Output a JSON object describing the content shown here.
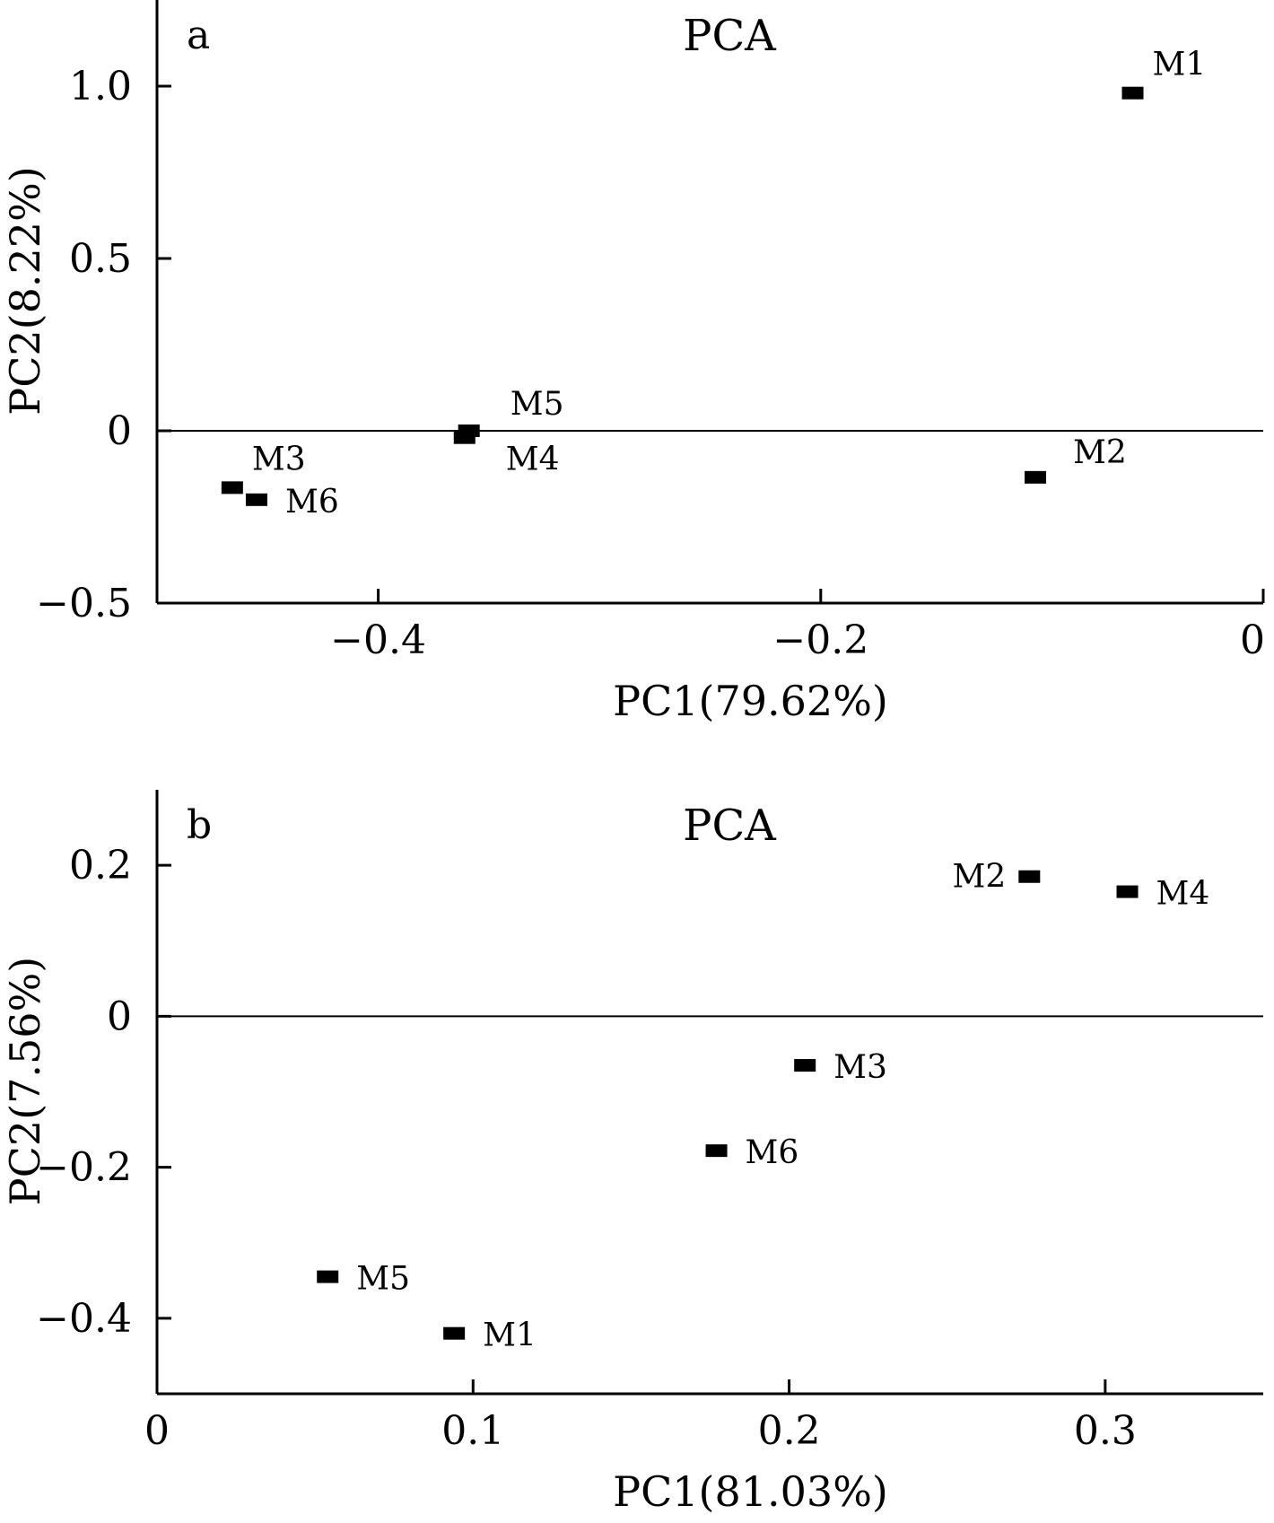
{
  "chart_data": [
    {
      "type": "scatter",
      "panel": "a",
      "title": "PCA",
      "xlabel": "PC1(79.62%)",
      "ylabel": "PC2(8.22%)",
      "xlim": [
        -0.5,
        0.0
      ],
      "ylim": [
        -0.5,
        1.25
      ],
      "xticks": [
        -0.4,
        -0.2,
        0
      ],
      "xtick_labels": [
        "−0.4",
        "−0.2",
        "0"
      ],
      "yticks": [
        -0.5,
        0,
        0.5,
        1.0
      ],
      "ytick_labels": [
        "−0.5",
        "0",
        "0.5",
        "1.0"
      ],
      "zero_line": "y=0",
      "grid": false,
      "points": [
        {
          "label": "M1",
          "x": -0.059,
          "y": 0.98,
          "label_side": "upper-right"
        },
        {
          "label": "M2",
          "x": -0.103,
          "y": -0.135,
          "label_side": "upper-right"
        },
        {
          "label": "M3",
          "x": -0.466,
          "y": -0.165,
          "label_side": "upper-right"
        },
        {
          "label": "M4",
          "x": -0.361,
          "y": -0.02,
          "label_side": "lower-right"
        },
        {
          "label": "M5",
          "x": -0.359,
          "y": 0.0,
          "label_side": "upper-right"
        },
        {
          "label": "M6",
          "x": -0.455,
          "y": -0.2,
          "label_side": "right"
        }
      ]
    },
    {
      "type": "scatter",
      "panel": "b",
      "title": "PCA",
      "xlabel": "PC1(81.03%)",
      "ylabel": "PC2(7.56%)",
      "xlim": [
        0.0,
        0.35
      ],
      "ylim": [
        -0.5,
        0.3
      ],
      "xticks": [
        0,
        0.1,
        0.2,
        0.3
      ],
      "xtick_labels": [
        "0",
        "0.1",
        "0.2",
        "0.3"
      ],
      "yticks": [
        -0.4,
        -0.2,
        0,
        0.2
      ],
      "ytick_labels": [
        "−0.4",
        "−0.2",
        "0",
        "0.2"
      ],
      "zero_line": "y=0",
      "grid": false,
      "points": [
        {
          "label": "M1",
          "x": 0.094,
          "y": -0.42,
          "label_side": "right"
        },
        {
          "label": "M2",
          "x": 0.276,
          "y": 0.185,
          "label_side": "left"
        },
        {
          "label": "M3",
          "x": 0.205,
          "y": -0.065,
          "label_side": "right"
        },
        {
          "label": "M4",
          "x": 0.307,
          "y": 0.165,
          "label_side": "right"
        },
        {
          "label": "M5",
          "x": 0.054,
          "y": -0.345,
          "label_side": "right"
        },
        {
          "label": "M6",
          "x": 0.177,
          "y": -0.178,
          "label_side": "right"
        }
      ]
    }
  ]
}
